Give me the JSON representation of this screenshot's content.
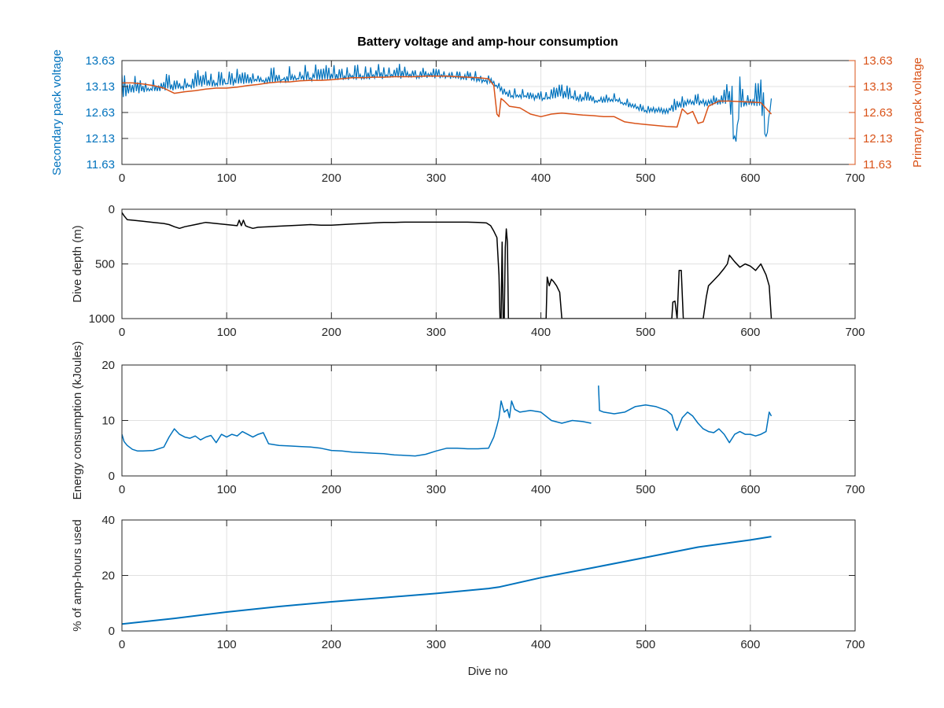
{
  "figure": {
    "title": "Battery voltage and amp-hour consumption",
    "xlabel": "Dive no"
  },
  "chart_data": [
    {
      "type": "line",
      "title": "Battery voltage and amp-hour consumption",
      "xlabel": "",
      "ylabel": "Secondary pack voltage",
      "y2label": "Primary pack voltage",
      "xlim": [
        0,
        700
      ],
      "ylim": [
        11.63,
        13.63
      ],
      "y2lim": [
        11.63,
        13.63
      ],
      "xticks": [
        0,
        100,
        200,
        300,
        400,
        500,
        600,
        700
      ],
      "yticks": [
        11.63,
        12.13,
        12.63,
        13.13,
        13.63
      ],
      "y2ticks": [
        11.63,
        12.13,
        12.63,
        13.13,
        13.63
      ],
      "grid": true,
      "colors": {
        "left_axis": "#0072BD",
        "right_axis": "#D95319"
      },
      "series": [
        {
          "axis": "left",
          "color": "#0072BD",
          "x": [
            0,
            5,
            10,
            20,
            30,
            40,
            50,
            60,
            70,
            80,
            90,
            100,
            110,
            120,
            130,
            140,
            150,
            160,
            170,
            180,
            190,
            200,
            210,
            220,
            230,
            240,
            250,
            260,
            270,
            280,
            290,
            300,
            310,
            320,
            330,
            340,
            350,
            355,
            360,
            365,
            370,
            380,
            390,
            400,
            410,
            420,
            430,
            440,
            450,
            460,
            470,
            480,
            490,
            500,
            510,
            520,
            530,
            540,
            550,
            560,
            570,
            580,
            585,
            590,
            595,
            600,
            605,
            610,
            615,
            620
          ],
          "values": [
            12.95,
            13.0,
            13.05,
            13.05,
            13.08,
            13.1,
            13.1,
            13.12,
            13.15,
            13.17,
            13.18,
            13.18,
            13.2,
            13.22,
            13.24,
            13.25,
            13.26,
            13.27,
            13.28,
            13.29,
            13.3,
            13.3,
            13.3,
            13.31,
            13.31,
            13.32,
            13.32,
            13.32,
            13.33,
            13.33,
            13.33,
            13.33,
            13.33,
            13.32,
            13.3,
            13.27,
            13.22,
            13.18,
            13.1,
            13.0,
            12.95,
            12.95,
            12.92,
            12.9,
            12.92,
            12.95,
            12.92,
            12.88,
            12.85,
            12.87,
            12.88,
            12.8,
            12.75,
            12.66,
            12.65,
            12.65,
            12.72,
            12.8,
            12.82,
            12.8,
            12.82,
            12.85,
            11.9,
            12.75,
            12.78,
            12.8,
            12.8,
            12.78,
            12.05,
            12.9
          ],
          "spikes_upper": [
            13.45,
            13.5,
            13.45,
            13.35,
            13.35,
            13.38,
            13.42,
            13.45,
            13.5,
            13.5,
            13.48,
            13.45,
            13.48,
            13.5,
            13.5,
            13.52,
            13.53,
            13.55,
            13.55,
            13.56,
            13.57,
            13.58,
            13.58,
            13.58,
            13.58,
            13.58,
            13.57,
            13.57,
            13.57,
            13.56,
            13.56,
            13.55,
            13.54,
            13.52,
            13.5,
            13.45,
            13.35,
            13.3,
            13.25,
            13.15,
            13.1,
            13.1,
            13.05,
            13.05,
            13.2,
            13.2,
            13.15,
            13.1,
            13.0,
            13.0,
            13.0,
            12.95,
            12.85,
            12.8,
            12.75,
            12.8,
            12.95,
            13.05,
            13.0,
            13.1,
            13.15,
            13.4,
            12.9,
            13.4,
            13.2,
            13.15,
            13.2,
            13.3,
            12.9,
            13.3
          ]
        },
        {
          "axis": "right",
          "color": "#D95319",
          "x": [
            0,
            10,
            20,
            30,
            40,
            45,
            50,
            60,
            70,
            80,
            90,
            100,
            110,
            120,
            130,
            140,
            150,
            160,
            170,
            180,
            190,
            200,
            210,
            220,
            230,
            240,
            250,
            260,
            270,
            280,
            290,
            300,
            310,
            320,
            330,
            340,
            350,
            355,
            358,
            360,
            362,
            365,
            370,
            380,
            390,
            400,
            410,
            420,
            430,
            440,
            450,
            460,
            470,
            480,
            490,
            500,
            510,
            520,
            530,
            535,
            540,
            545,
            550,
            555,
            560,
            570,
            580,
            590,
            600,
            610,
            620
          ],
          "values": [
            13.2,
            13.2,
            13.18,
            13.15,
            13.1,
            13.05,
            13.0,
            13.03,
            13.05,
            13.08,
            13.1,
            13.1,
            13.12,
            13.15,
            13.17,
            13.2,
            13.22,
            13.22,
            13.24,
            13.25,
            13.25,
            13.26,
            13.28,
            13.3,
            13.3,
            13.31,
            13.31,
            13.32,
            13.32,
            13.32,
            13.33,
            13.33,
            13.33,
            13.32,
            13.31,
            13.3,
            13.28,
            13.15,
            12.6,
            12.55,
            12.9,
            12.85,
            12.75,
            12.72,
            12.6,
            12.55,
            12.6,
            12.62,
            12.6,
            12.58,
            12.57,
            12.55,
            12.55,
            12.45,
            12.42,
            12.4,
            12.38,
            12.36,
            12.35,
            12.7,
            12.6,
            12.65,
            12.42,
            12.45,
            12.75,
            12.85,
            12.85,
            12.84,
            12.83,
            12.82,
            12.6
          ]
        }
      ]
    },
    {
      "type": "line",
      "title": "",
      "xlabel": "",
      "ylabel": "Dive depth (m)",
      "xlim": [
        0,
        700
      ],
      "ylim": [
        1000,
        0
      ],
      "yreversed": true,
      "xticks": [
        0,
        100,
        200,
        300,
        400,
        500,
        600,
        700
      ],
      "yticks": [
        0,
        500,
        1000
      ],
      "grid": true,
      "series": [
        {
          "color": "#000000",
          "x": [
            0,
            2,
            5,
            10,
            20,
            30,
            40,
            45,
            50,
            55,
            60,
            70,
            80,
            90,
            100,
            110,
            112,
            114,
            116,
            118,
            120,
            125,
            130,
            140,
            150,
            160,
            170,
            180,
            190,
            200,
            210,
            220,
            230,
            240,
            250,
            260,
            270,
            280,
            290,
            300,
            310,
            320,
            330,
            340,
            348,
            352,
            355,
            358,
            360,
            361,
            362,
            363,
            364,
            365,
            366,
            367,
            368,
            369,
            370,
            372,
            380,
            390,
            400,
            405,
            406,
            408,
            410,
            412,
            415,
            418,
            420,
            430,
            440,
            450,
            460,
            470,
            480,
            490,
            500,
            510,
            520,
            525,
            526,
            528,
            530,
            532,
            534,
            536,
            538,
            540,
            545,
            550,
            555,
            558,
            560,
            565,
            570,
            575,
            578,
            580,
            585,
            590,
            595,
            600,
            605,
            610,
            615,
            618,
            620
          ],
          "values": [
            30,
            60,
            95,
            100,
            110,
            120,
            130,
            140,
            160,
            175,
            160,
            140,
            120,
            130,
            140,
            150,
            100,
            150,
            100,
            150,
            160,
            175,
            165,
            160,
            155,
            150,
            145,
            140,
            145,
            145,
            140,
            135,
            130,
            125,
            120,
            120,
            118,
            118,
            118,
            118,
            118,
            118,
            118,
            120,
            125,
            150,
            200,
            260,
            600,
            1000,
            1000,
            300,
            1000,
            1000,
            350,
            180,
            300,
            1000,
            1000,
            1000,
            1000,
            1000,
            1000,
            1000,
            620,
            700,
            640,
            660,
            700,
            760,
            1000,
            1000,
            1000,
            1000,
            1000,
            1000,
            1000,
            1000,
            1000,
            1000,
            1000,
            1000,
            850,
            840,
            1000,
            560,
            560,
            1000,
            1000,
            1000,
            1000,
            1000,
            1000,
            800,
            700,
            650,
            600,
            540,
            500,
            420,
            480,
            530,
            500,
            520,
            560,
            500,
            600,
            700,
            1000
          ]
        }
      ]
    },
    {
      "type": "line",
      "title": "",
      "xlabel": "",
      "ylabel": "Energy consumption (kJoules)",
      "xlim": [
        0,
        700
      ],
      "ylim": [
        0,
        20
      ],
      "xticks": [
        0,
        100,
        200,
        300,
        400,
        500,
        600,
        700
      ],
      "yticks": [
        0,
        10,
        20
      ],
      "grid": true,
      "series": [
        {
          "color": "#0072BD",
          "x": [
            0,
            2,
            5,
            10,
            15,
            20,
            30,
            40,
            45,
            50,
            55,
            60,
            65,
            70,
            75,
            80,
            85,
            90,
            95,
            100,
            105,
            110,
            115,
            120,
            125,
            130,
            135,
            140,
            150,
            160,
            170,
            180,
            190,
            200,
            210,
            220,
            230,
            240,
            250,
            260,
            270,
            280,
            290,
            300,
            310,
            320,
            330,
            340,
            350,
            355,
            358,
            360,
            362,
            365,
            368,
            370,
            372,
            375,
            380,
            390,
            400,
            410,
            420,
            430,
            440,
            448
          ],
          "values": [
            7.5,
            6.2,
            5.5,
            4.8,
            4.5,
            4.5,
            4.6,
            5.2,
            7.0,
            8.5,
            7.5,
            7.0,
            6.8,
            7.2,
            6.5,
            7.0,
            7.3,
            6.0,
            7.5,
            7.0,
            7.5,
            7.2,
            8.0,
            7.5,
            7.0,
            7.5,
            7.8,
            5.8,
            5.5,
            5.4,
            5.3,
            5.2,
            5.0,
            4.6,
            4.5,
            4.3,
            4.2,
            4.1,
            4.0,
            3.8,
            3.7,
            3.6,
            3.9,
            4.5,
            5.0,
            5.0,
            4.9,
            4.9,
            5.0,
            7.0,
            9.0,
            10.5,
            13.5,
            11.5,
            12.0,
            10.5,
            13.5,
            12.0,
            11.5,
            11.8,
            11.5,
            10.0,
            9.5,
            10.0,
            9.8,
            9.5
          ]
        },
        {
          "color": "#0072BD",
          "x": [
            455,
            456,
            460,
            470,
            480,
            490,
            500,
            510,
            520,
            525,
            528,
            530,
            535,
            540,
            545,
            550,
            555,
            560,
            565,
            570,
            575,
            580,
            585,
            590,
            595,
            600,
            605,
            610,
            615,
            618,
            620
          ],
          "values": [
            16.3,
            11.8,
            11.5,
            11.2,
            11.5,
            12.5,
            12.8,
            12.5,
            11.8,
            11.0,
            9.0,
            8.2,
            10.5,
            11.5,
            10.8,
            9.5,
            8.5,
            8.0,
            7.8,
            8.5,
            7.5,
            6.0,
            7.5,
            8.0,
            7.5,
            7.5,
            7.2,
            7.5,
            8.0,
            11.5,
            10.8
          ]
        }
      ]
    },
    {
      "type": "line",
      "title": "",
      "xlabel": "Dive no",
      "ylabel": "% of amp-hours used",
      "xlim": [
        0,
        700
      ],
      "ylim": [
        0,
        40
      ],
      "xticks": [
        0,
        100,
        200,
        300,
        400,
        500,
        600,
        700
      ],
      "yticks": [
        0,
        20,
        40
      ],
      "grid": true,
      "series": [
        {
          "color": "#0072BD",
          "x": [
            0,
            50,
            100,
            150,
            200,
            250,
            300,
            350,
            360,
            400,
            450,
            500,
            550,
            600,
            620
          ],
          "values": [
            2.5,
            4.5,
            6.8,
            8.8,
            10.5,
            12.0,
            13.5,
            15.3,
            15.8,
            19.2,
            22.8,
            26.5,
            30.2,
            32.8,
            34.0
          ]
        }
      ]
    }
  ]
}
